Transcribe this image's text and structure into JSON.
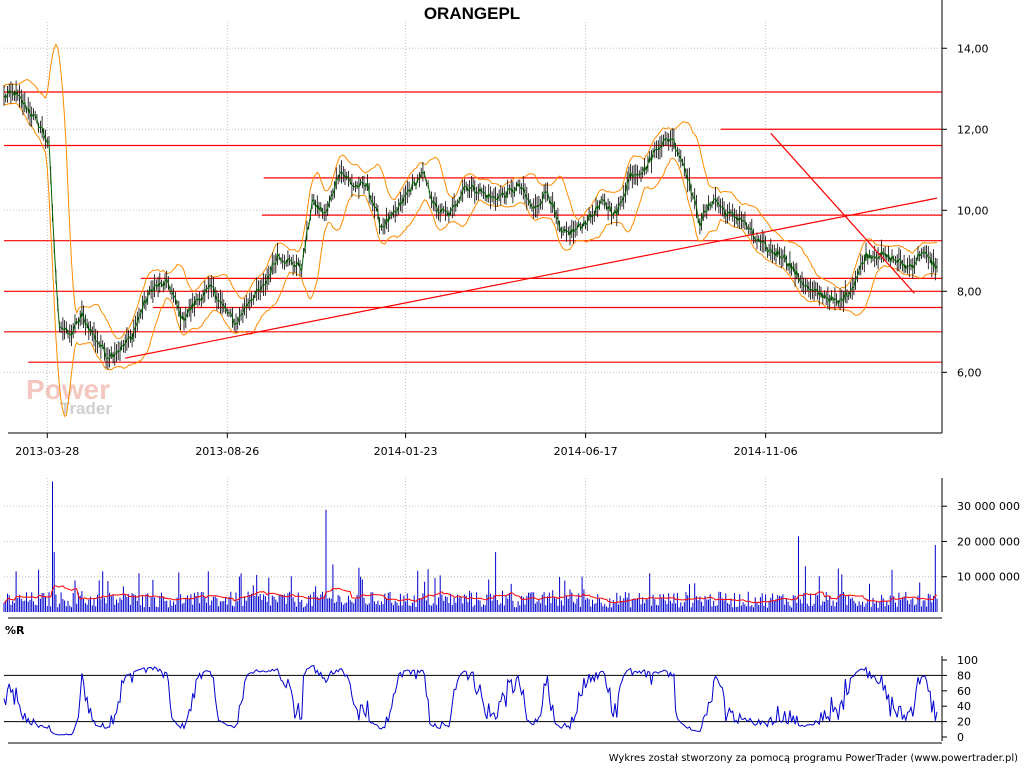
{
  "title": "ORANGEPL",
  "footer": "Wykres został stworzony za pomocą programu PowerTrader (www.powertrader.pl)",
  "watermark": {
    "line1": "Power",
    "line2": "Trader"
  },
  "colors": {
    "price_line": "#006400",
    "bands": "#ff8c00",
    "levels": "#ff0000",
    "volume_bars": "#0000cd",
    "volume_avg": "#ff0000",
    "williams": "#0000cd",
    "grid": "#c0c0c0"
  },
  "chart_data": [
    {
      "type": "line",
      "name": "price",
      "title": "ORANGEPL",
      "x_tick_labels": [
        "2013-03-28",
        "2013-08-26",
        "2014-01-23",
        "2014-06-17",
        "2014-11-06"
      ],
      "x_tick_indices": [
        25,
        129,
        232,
        336,
        440
      ],
      "x_count": 540,
      "y_ticks": [
        "6,00",
        "8,00",
        "10,00",
        "12,00",
        "14,00"
      ],
      "y_tick_values": [
        6,
        8,
        10,
        12,
        14
      ],
      "ylim": [
        4.7,
        14.5
      ],
      "grid": true,
      "anchors_index": [
        0,
        6,
        14,
        22,
        26,
        30,
        32,
        38,
        45,
        52,
        60,
        68,
        74,
        80,
        86,
        95,
        103,
        112,
        120,
        127,
        134,
        142,
        150,
        158,
        166,
        172,
        178,
        186,
        194,
        202,
        210,
        218,
        226,
        234,
        242,
        250,
        258,
        266,
        274,
        282,
        290,
        298,
        306,
        314,
        322,
        330,
        338,
        346,
        354,
        362,
        370,
        378,
        386,
        394,
        402,
        410,
        418,
        426,
        434,
        442,
        450,
        458,
        466,
        474,
        482,
        490,
        498,
        506,
        514,
        522,
        526,
        530,
        534,
        539
      ],
      "anchors_close": [
        12.8,
        12.9,
        12.5,
        12.0,
        11.6,
        8.3,
        7.2,
        6.9,
        7.4,
        6.9,
        6.4,
        6.6,
        6.9,
        7.6,
        8.1,
        8.2,
        7.3,
        7.8,
        8.1,
        7.6,
        7.2,
        7.8,
        8.1,
        8.9,
        8.7,
        8.6,
        10.2,
        9.9,
        11.0,
        10.6,
        10.6,
        9.6,
        9.9,
        10.5,
        10.9,
        10.0,
        9.9,
        10.6,
        10.5,
        10.3,
        10.4,
        10.6,
        10.0,
        10.5,
        9.4,
        9.5,
        9.8,
        10.2,
        9.9,
        10.9,
        11.0,
        11.6,
        11.8,
        11.0,
        9.7,
        10.3,
        9.9,
        9.8,
        9.3,
        9.0,
        8.9,
        8.4,
        8.0,
        7.9,
        7.7,
        8.1,
        8.9,
        8.9,
        8.8,
        8.6,
        8.7,
        9.0,
        8.8,
        8.6
      ],
      "horizontal_levels": [
        {
          "y": 12.92,
          "x_from": 0
        },
        {
          "y": 12.0,
          "x_from": 414
        },
        {
          "y": 11.6,
          "x_from": 0
        },
        {
          "y": 10.8,
          "x_from": 150
        },
        {
          "y": 9.88,
          "x_from": 149
        },
        {
          "y": 9.25,
          "x_from": 0
        },
        {
          "y": 8.32,
          "x_from": 79
        },
        {
          "y": 8.0,
          "x_from": 0
        },
        {
          "y": 7.6,
          "x_from": 86
        },
        {
          "y": 7.0,
          "x_from": 0
        },
        {
          "y": 6.25,
          "x_from": 14
        }
      ],
      "trendlines": [
        {
          "x1": 70,
          "y1": 6.35,
          "x2": 539,
          "y2": 10.3
        },
        {
          "x1": 443,
          "y1": 11.9,
          "x2": 526,
          "y2": 7.95
        }
      ]
    },
    {
      "type": "bar",
      "name": "volume",
      "y_ticks": [
        "10 000 000",
        "20 000 000",
        "30 000 000"
      ],
      "y_tick_values": [
        10000000,
        20000000,
        30000000
      ],
      "ylim": [
        0,
        38000000
      ],
      "grid": true,
      "spikes": [
        [
          28,
          37000000
        ],
        [
          29,
          17000000
        ],
        [
          78,
          11000000
        ],
        [
          118,
          11500000
        ],
        [
          186,
          29000000
        ],
        [
          190,
          13500000
        ],
        [
          206,
          10000000
        ],
        [
          284,
          17000000
        ],
        [
          459,
          21500000
        ],
        [
          463,
          13000000
        ],
        [
          513,
          12000000
        ],
        [
          538,
          19000000
        ]
      ],
      "baseline_avg": 3500000
    },
    {
      "type": "line",
      "name": "williams_r",
      "title": "%R",
      "y_ticks": [
        "0",
        "20",
        "40",
        "60",
        "80",
        "100"
      ],
      "y_tick_values": [
        0,
        20,
        40,
        60,
        80,
        100
      ],
      "ylim": [
        0,
        100
      ],
      "reference_lines": [
        20,
        80
      ]
    }
  ]
}
